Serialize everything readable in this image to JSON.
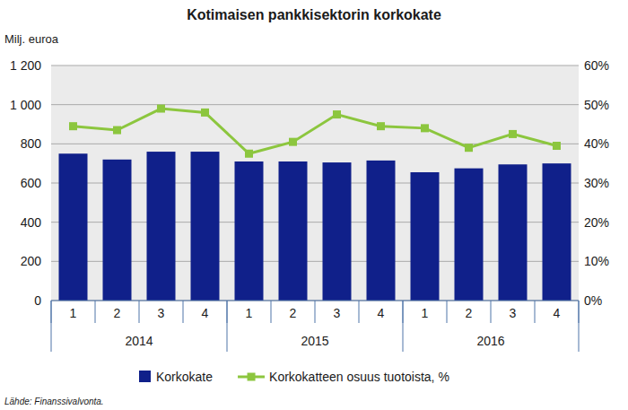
{
  "chart_data": {
    "type": "bar",
    "title": "Kotimaisen pankkisektorin korkokate",
    "ylabel": "Milj. euroa",
    "source": "Lähde: Finanssivalvonta.",
    "categories": [
      "1",
      "2",
      "3",
      "4",
      "1",
      "2",
      "3",
      "4",
      "1",
      "2",
      "3",
      "4"
    ],
    "category_groups": [
      {
        "label": "2014",
        "count": 4
      },
      {
        "label": "2015",
        "count": 4
      },
      {
        "label": "2016",
        "count": 4
      }
    ],
    "series": [
      {
        "name": "Korkokate",
        "type": "bar",
        "color": "#10208a",
        "values": [
          750,
          720,
          760,
          760,
          710,
          710,
          705,
          715,
          655,
          675,
          695,
          700
        ]
      },
      {
        "name": "Korkokatteen osuus tuotoista, %",
        "type": "line",
        "axis": "y2",
        "color": "#8cc63e",
        "marker": "square",
        "values": [
          44.5,
          43.5,
          49,
          48,
          37.5,
          40.5,
          47.5,
          44.5,
          44,
          39,
          42.5,
          39.5
        ]
      }
    ],
    "ylim": [
      0,
      1200
    ],
    "yticks": [
      0,
      200,
      400,
      600,
      800,
      {
        "value": 1000,
        "label": "1 000"
      },
      {
        "value": 1200,
        "label": "1 200"
      }
    ],
    "y2lim": [
      0,
      60
    ],
    "y2ticks": [
      {
        "value": 0,
        "label": "0%"
      },
      {
        "value": 10,
        "label": "10%"
      },
      {
        "value": 20,
        "label": "20%"
      },
      {
        "value": 30,
        "label": "30%"
      },
      {
        "value": 40,
        "label": "40%"
      },
      {
        "value": 50,
        "label": "50%"
      },
      {
        "value": 60,
        "label": "60%"
      }
    ],
    "grid": true,
    "legend": "bottom"
  }
}
